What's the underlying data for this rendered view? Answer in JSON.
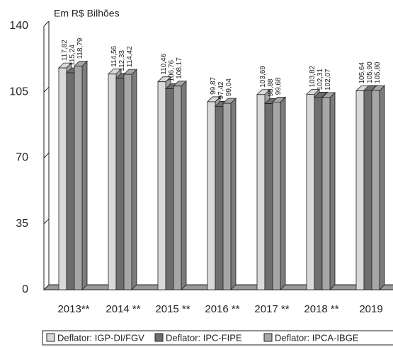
{
  "chart_data": {
    "type": "bar3d",
    "ylabel": "Em R$ Bilhões",
    "categories": [
      "2013**",
      "2014 **",
      "2015 **",
      "2016 **",
      "2017 **",
      "2018 **",
      "2019"
    ],
    "series": [
      {
        "name": "Deflator: IGP-DI/FGV",
        "color": "#d9d9d9",
        "values": [
          117.82,
          114.56,
          110.46,
          99.87,
          103.69,
          103.82,
          105.64
        ],
        "value_labels": [
          "117,82",
          "114,56",
          "110,46",
          "99,87",
          "103,69",
          "103,82",
          "105,64"
        ]
      },
      {
        "name": "Deflator: IPC-FIPE",
        "color": "#6e6e6e",
        "values": [
          115.24,
          112.33,
          106.76,
          97.42,
          98.88,
          102.31,
          105.9
        ],
        "value_labels": [
          "115,24",
          "112,33",
          "106,76",
          "97,42",
          "98,88",
          "102,31",
          "105,90"
        ]
      },
      {
        "name": "Deflator: IPCA-IBGE",
        "color": "#a6a6a6",
        "values": [
          118.79,
          114.42,
          108.17,
          99.04,
          99.68,
          102.07,
          105.8
        ],
        "value_labels": [
          "118,79",
          "114,42",
          "108,17",
          "99,04",
          "99,68",
          "102,07",
          "105,80"
        ]
      }
    ],
    "ylim": [
      0,
      140
    ],
    "yticks": [
      0,
      35,
      70,
      105,
      140
    ]
  }
}
